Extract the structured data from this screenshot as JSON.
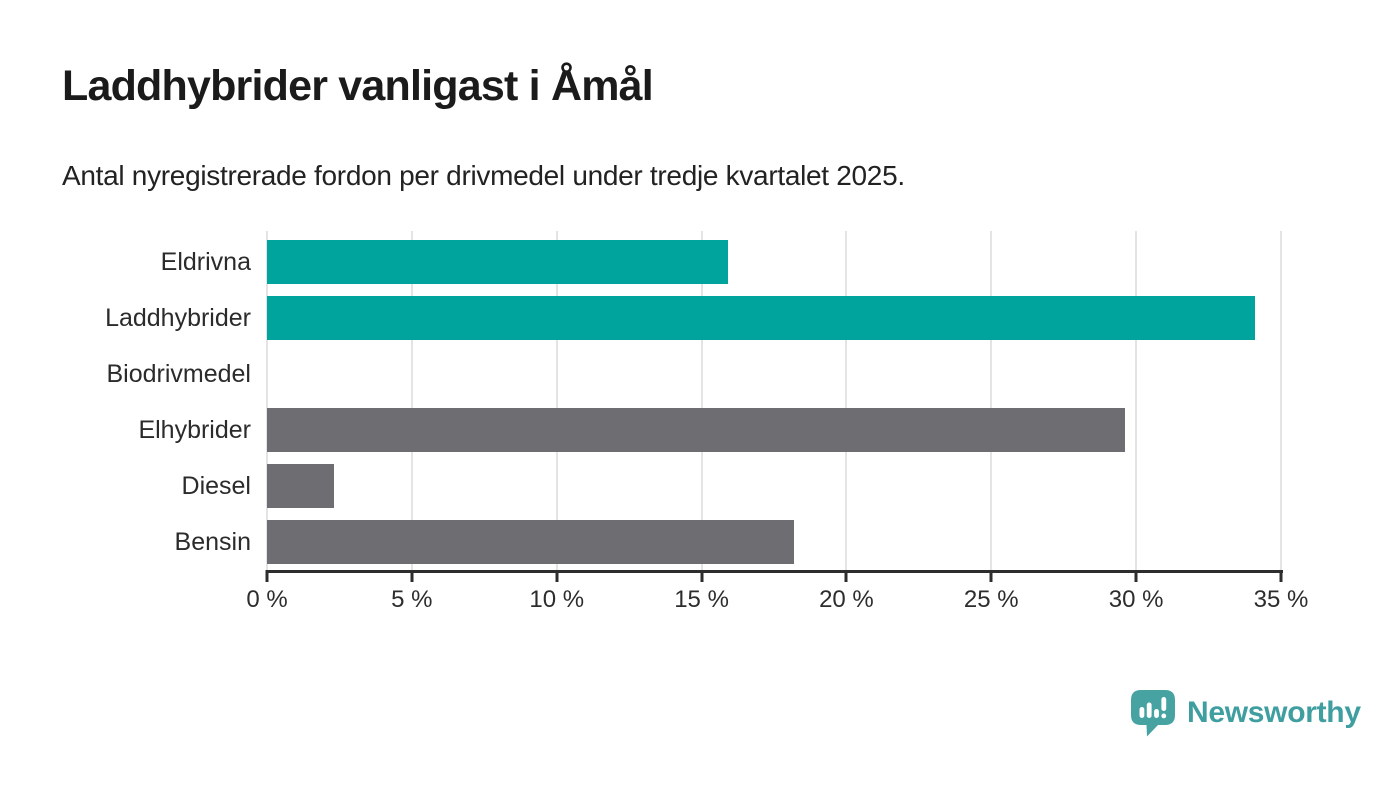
{
  "header": {
    "title": "Laddhybrider vanligast i Åmål",
    "subtitle": "Antal nyregistrerade fordon per drivmedel under tredje kvartalet 2025."
  },
  "chart_data": {
    "type": "bar",
    "orientation": "horizontal",
    "categories": [
      "Eldrivna",
      "Laddhybrider",
      "Biodrivmedel",
      "Elhybrider",
      "Diesel",
      "Bensin"
    ],
    "values": [
      15.9,
      34.1,
      0,
      29.6,
      2.3,
      18.2
    ],
    "unit": "%",
    "bar_colors": [
      "#00a49c",
      "#00a49c",
      "#6e6d72",
      "#6e6d72",
      "#6e6d72",
      "#6e6d72"
    ],
    "highlight_color": "#00a49c",
    "base_color": "#6e6d72",
    "title": "Laddhybrider vanligast i Åmål",
    "xlabel": "",
    "ylabel": "",
    "xlim": [
      0,
      35
    ],
    "x_ticks": [
      0,
      5,
      10,
      15,
      20,
      25,
      30,
      35
    ],
    "x_tick_labels": [
      "0 %",
      "5 %",
      "10 %",
      "15 %",
      "20 %",
      "25 %",
      "30 %",
      "35 %"
    ],
    "grid": true,
    "gridline_color": "#e4e4e4",
    "axis_color": "#2d2d2d",
    "legend": "none"
  },
  "branding": {
    "logo_text": "Newsworthy",
    "logo_icon": "bar-chart-speech-bubble-icon",
    "logo_text_color": "#3f9ea0",
    "logo_icon_color": "#46a3a2"
  }
}
